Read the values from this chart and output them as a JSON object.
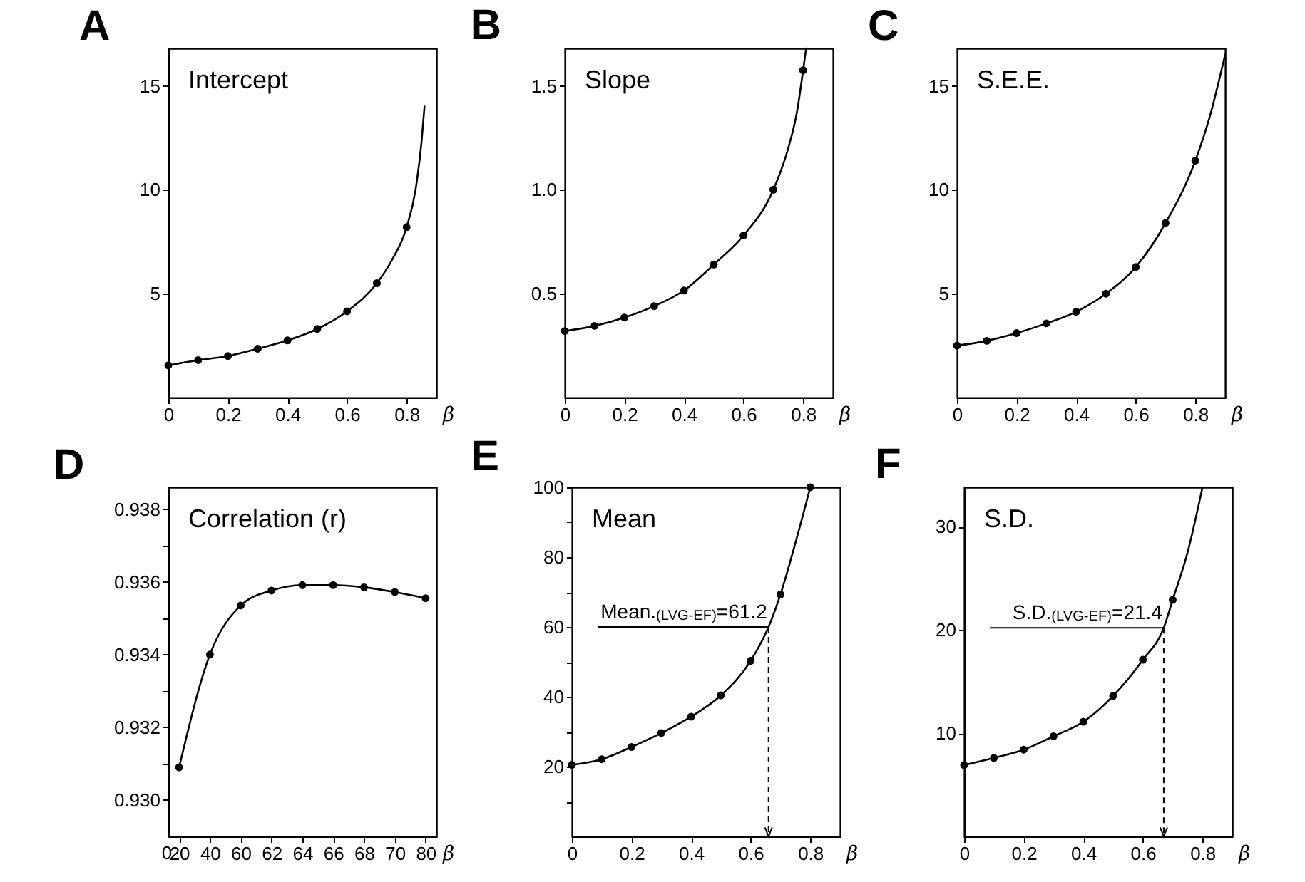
{
  "chart_data": [
    {
      "type": "scatter",
      "title": "A",
      "annotations": [
        "Intercept"
      ],
      "xlabel": "β",
      "marker": "circle",
      "x": [
        0,
        0.1,
        0.2,
        0.3,
        0.4,
        0.5,
        0.6,
        0.7,
        0.8
      ],
      "xlim": [
        0,
        0.9
      ],
      "xticks": [
        0,
        0.2,
        0.4,
        0.6,
        0.8
      ],
      "ylim": [
        0,
        16.8
      ],
      "yticks": [
        5,
        10,
        15
      ],
      "series": [
        {
          "color": "#000000",
          "values": [
            1.55,
            1.8,
            2.0,
            2.35,
            2.75,
            3.3,
            4.15,
            5.5,
            8.2
          ]
        },
        {
          "type": "line",
          "marker": "none",
          "color": "#000000",
          "x": [
            0,
            0.1,
            0.2,
            0.3,
            0.4,
            0.5,
            0.6,
            0.7,
            0.75,
            0.8,
            0.83,
            0.85,
            0.86
          ],
          "values": [
            1.55,
            1.8,
            2.0,
            2.35,
            2.75,
            3.3,
            4.15,
            5.5,
            6.6,
            8.2,
            10.0,
            12.3,
            14.0
          ]
        }
      ]
    },
    {
      "type": "scatter",
      "title": "B",
      "annotations": [
        "Slope"
      ],
      "xlabel": "β",
      "marker": "circle",
      "x": [
        0,
        0.1,
        0.2,
        0.3,
        0.4,
        0.5,
        0.6,
        0.7,
        0.8
      ],
      "xlim": [
        0,
        0.9
      ],
      "xticks": [
        0,
        0.2,
        0.4,
        0.6,
        0.8
      ],
      "ylim": [
        0,
        1.68
      ],
      "yticks": [
        {
          "value": 0.5,
          "label": "0.5"
        },
        {
          "value": 1,
          "label": "1.0"
        },
        {
          "value": 1.5,
          "label": "1.5"
        }
      ],
      "series": [
        {
          "color": "#000000",
          "values": [
            0.32,
            0.345,
            0.385,
            0.44,
            0.515,
            0.64,
            0.78,
            1.0,
            1.575
          ]
        },
        {
          "type": "line",
          "marker": "none",
          "color": "#000000",
          "x": [
            0,
            0.1,
            0.2,
            0.3,
            0.4,
            0.5,
            0.6,
            0.7,
            0.75,
            0.78,
            0.8,
            0.81
          ],
          "values": [
            0.32,
            0.345,
            0.385,
            0.44,
            0.515,
            0.64,
            0.78,
            1.0,
            1.2,
            1.38,
            1.575,
            1.68
          ]
        }
      ]
    },
    {
      "type": "scatter",
      "title": "C",
      "annotations": [
        "S.E.E."
      ],
      "xlabel": "β",
      "marker": "circle",
      "x": [
        0,
        0.1,
        0.2,
        0.3,
        0.4,
        0.5,
        0.6,
        0.7,
        0.8
      ],
      "xlim": [
        0,
        0.9
      ],
      "xticks": [
        0,
        0.2,
        0.4,
        0.6,
        0.8
      ],
      "ylim": [
        0,
        16.8
      ],
      "yticks": [
        5,
        10,
        15
      ],
      "series": [
        {
          "color": "#000000",
          "values": [
            2.5,
            2.73,
            3.1,
            3.57,
            4.13,
            5.0,
            6.28,
            8.4,
            11.4
          ]
        },
        {
          "type": "line",
          "marker": "none",
          "color": "#000000",
          "x": [
            0,
            0.1,
            0.2,
            0.3,
            0.4,
            0.5,
            0.6,
            0.7,
            0.8,
            0.85,
            0.9
          ],
          "values": [
            2.5,
            2.73,
            3.1,
            3.57,
            4.13,
            5.0,
            6.28,
            8.4,
            11.4,
            13.6,
            16.5
          ]
        }
      ]
    },
    {
      "type": "line",
      "title": "D",
      "annotations": [
        "Correlation (r)",
        "0"
      ],
      "xlabel": "β",
      "marker": "circle",
      "categories": [
        "20",
        "40",
        "60",
        "62",
        "64",
        "66",
        "68",
        "70",
        "80"
      ],
      "ylim": [
        0.929,
        0.9386
      ],
      "yticks": [
        {
          "value": 0.93,
          "label": "0.930"
        },
        {
          "value": 0.931,
          "label": null
        },
        {
          "value": 0.932,
          "label": "0.932"
        },
        {
          "value": 0.933,
          "label": null
        },
        {
          "value": 0.934,
          "label": "0.934"
        },
        {
          "value": 0.935,
          "label": null
        },
        {
          "value": 0.936,
          "label": "0.936"
        },
        {
          "value": 0.937,
          "label": null
        },
        {
          "value": 0.938,
          "label": "0.938"
        }
      ],
      "series": [
        {
          "color": "#000000",
          "values": [
            0.9309,
            0.934,
            0.93535,
            0.93576,
            0.93591,
            0.93591,
            0.93585,
            0.93572,
            0.93555
          ]
        }
      ]
    },
    {
      "type": "scatter",
      "title": "E",
      "annotations": [
        "Mean",
        {
          "text": "Mean.$_{(LVG-EF)}$=61.2",
          "x": 0.66,
          "y": 60
        }
      ],
      "xlabel": "β",
      "marker": "circle",
      "x": [
        0,
        0.1,
        0.2,
        0.3,
        0.4,
        0.5,
        0.6,
        0.7,
        0.8
      ],
      "xlim": [
        0,
        0.9
      ],
      "xticks": [
        0,
        0.2,
        0.4,
        0.6,
        0.8
      ],
      "ylim": [
        0,
        100
      ],
      "yticks": [
        {
          "value": 10,
          "label": null
        },
        20,
        {
          "value": 30,
          "label": null
        },
        40,
        {
          "value": 50,
          "label": null
        },
        60,
        {
          "value": 70,
          "label": null
        },
        80,
        {
          "value": 90,
          "label": null
        },
        100
      ],
      "series": [
        {
          "color": "#000000",
          "values": [
            20.5,
            22.1,
            25.6,
            29.6,
            34.3,
            40.4,
            50.3,
            69.3,
            100
          ]
        },
        {
          "type": "line",
          "marker": "none",
          "color": "#000000",
          "x": [
            0,
            0.1,
            0.2,
            0.3,
            0.4,
            0.5,
            0.6,
            0.66,
            0.7,
            0.75,
            0.8
          ],
          "values": [
            20.5,
            22.1,
            25.6,
            29.6,
            34.3,
            40.4,
            50.3,
            60,
            69.3,
            84,
            100
          ]
        }
      ]
    },
    {
      "type": "scatter",
      "title": "F",
      "annotations": [
        "S.D.",
        {
          "text": "S.D.$_{(LVG-EF)}$=21.4",
          "x": 0.67,
          "y": 20.2
        }
      ],
      "xlabel": "β",
      "marker": "circle",
      "x": [
        0,
        0.1,
        0.2,
        0.3,
        0.4,
        0.5,
        0.6,
        0.7
      ],
      "xlim": [
        0,
        0.9
      ],
      "xticks": [
        0,
        0.2,
        0.4,
        0.6,
        0.8
      ],
      "ylim": [
        0,
        33.8
      ],
      "yticks": [
        10,
        20,
        30
      ],
      "series": [
        {
          "color": "#000000",
          "values": [
            6.9,
            7.6,
            8.4,
            9.7,
            11.1,
            13.6,
            17.1,
            22.9
          ]
        },
        {
          "type": "line",
          "marker": "none",
          "color": "#000000",
          "x": [
            0,
            0.1,
            0.2,
            0.3,
            0.4,
            0.5,
            0.6,
            0.67,
            0.7,
            0.75,
            0.8
          ],
          "values": [
            6.9,
            7.6,
            8.4,
            9.7,
            11.1,
            13.6,
            17.1,
            20.2,
            22.9,
            27.5,
            33.8
          ]
        }
      ]
    }
  ]
}
